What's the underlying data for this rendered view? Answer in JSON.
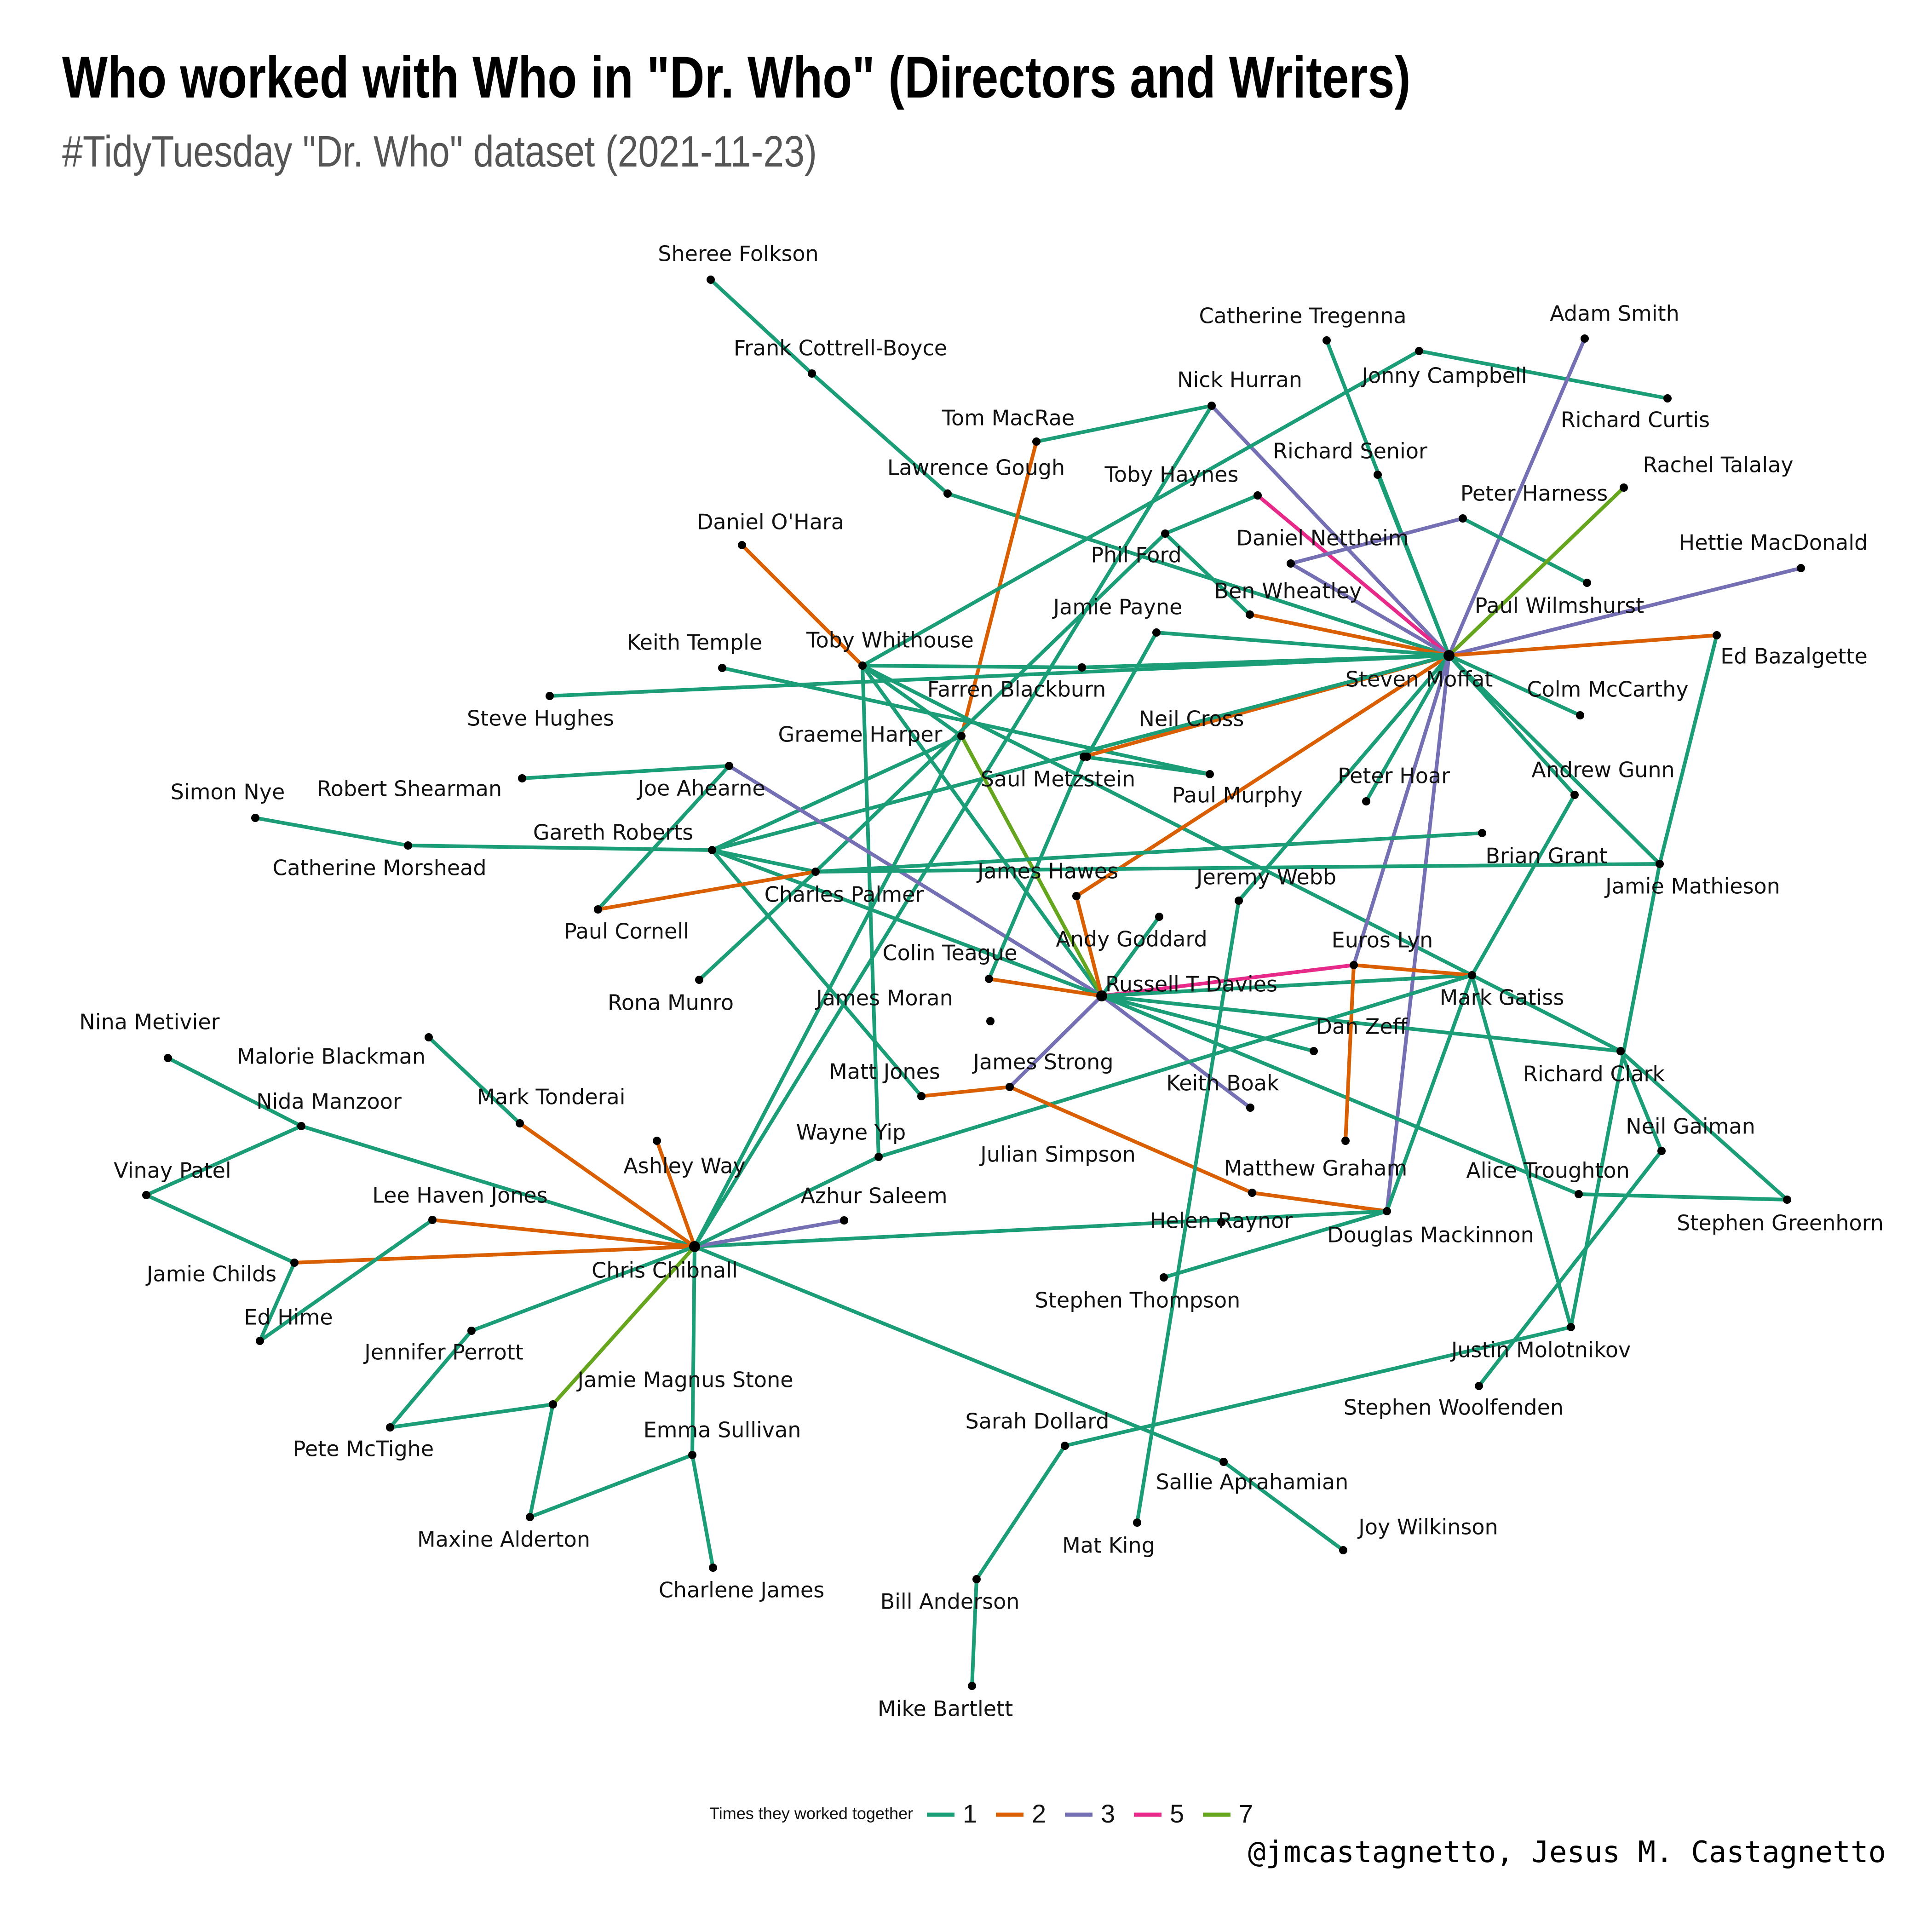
{
  "title": "Who worked with Who in \"Dr. Who\" (Directors and Writers)",
  "subtitle": "#TidyTuesday \"Dr. Who\" dataset (2021-11-23)",
  "caption": "@jmcastagnetto, Jesus M. Castagnetto",
  "legend": {
    "title": "Times they worked together",
    "items": [
      {
        "label": "1",
        "color": "#1b9e77"
      },
      {
        "label": "2",
        "color": "#d95f02"
      },
      {
        "label": "3",
        "color": "#7570b3"
      },
      {
        "label": "5",
        "color": "#e7298a"
      },
      {
        "label": "7",
        "color": "#66a61e"
      }
    ]
  },
  "nodes": [
    "Sheree Folkson",
    "Frank Cottrell-Boyce",
    "Lawrence Gough",
    "Tom MacRae",
    "Nick Hurran",
    "Catherine Tregenna",
    "Jonny Campbell",
    "Richard Curtis",
    "Adam Smith",
    "Richard Senior",
    "Toby Haynes",
    "Peter Harness",
    "Rachel Talalay",
    "Daniel O'Hara",
    "Daniel Nettheim",
    "Phil Ford",
    "Hettie MacDonald",
    "Ben Wheatley",
    "Jamie Payne",
    "Paul Wilmshurst",
    "Keith Temple",
    "Toby Whithouse",
    "Steven Moffat",
    "Ed Bazalgette",
    "Farren Blackburn",
    "Colm McCarthy",
    "Steve Hughes",
    "Neil Cross",
    "Graeme Harper",
    "Simon Nye",
    "Robert Shearman",
    "Joe Ahearne",
    "Saul Metzstein",
    "Peter Hoar",
    "Andrew Gunn",
    "Paul Murphy",
    "Catherine Morshead",
    "Gareth Roberts",
    "Brian Grant",
    "James Hawes",
    "Jeremy Webb",
    "Jamie Mathieson",
    "Charles Palmer",
    "Paul Cornell",
    "Andy Goddard",
    "Euros Lyn",
    "Colin Teague",
    "Russell T Davies",
    "Mark Gatiss",
    "Rona Munro",
    "James Moran",
    "Dan Zeff",
    "Nina Metivier",
    "Malorie Blackman",
    "Richard Clark",
    "James Strong",
    "Keith Boak",
    "Matt Jones",
    "Nida Manzoor",
    "Mark Tonderai",
    "Neil Gaiman",
    "Wayne Yip",
    "Julian Simpson",
    "Ashley Way",
    "Vinay Patel",
    "Matthew Graham",
    "Alice Troughton",
    "Lee Haven Jones",
    "Azhur Saleem",
    "Helen Raynor",
    "Stephen Greenhorn",
    "Douglas Mackinnon",
    "Jamie Childs",
    "Chris Chibnall",
    "Stephen Thompson",
    "Ed Hime",
    "Jennifer Perrott",
    "Justin Molotnikov",
    "Jamie Magnus Stone",
    "Stephen Woolfenden",
    "Pete McTighe",
    "Sarah Dollard",
    "Emma Sullivan",
    "Sallie Aprahamian",
    "Maxine Alderton",
    "Joy Wilkinson",
    "Mat King",
    "Charlene James",
    "Bill Anderson",
    "Mike Bartlett"
  ],
  "edges": [
    [
      "Sheree Folkson",
      "Frank Cottrell-Boyce",
      1
    ],
    [
      "Frank Cottrell-Boyce",
      "Lawrence Gough",
      1
    ],
    [
      "Lawrence Gough",
      "Steven Moffat",
      1
    ],
    [
      "Tom MacRae",
      "Nick Hurran",
      1
    ],
    [
      "Tom MacRae",
      "Graeme Harper",
      2
    ],
    [
      "Nick Hurran",
      "Steven Moffat",
      3
    ],
    [
      "Nick Hurran",
      "Chris Chibnall",
      1
    ],
    [
      "Catherine Tregenna",
      "Steven Moffat",
      1
    ],
    [
      "Jonny Campbell",
      "Richard Curtis",
      1
    ],
    [
      "Jonny Campbell",
      "Toby Whithouse",
      1
    ],
    [
      "Adam Smith",
      "Steven Moffat",
      3
    ],
    [
      "Richard Senior",
      "Steven Moffat",
      1
    ],
    [
      "Toby Haynes",
      "Steven Moffat",
      5
    ],
    [
      "Peter Harness",
      "Daniel Nettheim",
      3
    ],
    [
      "Peter Harness",
      "Paul Wilmshurst",
      1
    ],
    [
      "Rachel Talalay",
      "Steven Moffat",
      7
    ],
    [
      "Daniel O'Hara",
      "Toby Whithouse",
      2
    ],
    [
      "Daniel Nettheim",
      "Steven Moffat",
      3
    ],
    [
      "Phil Ford",
      "Toby Haynes",
      1
    ],
    [
      "Phil Ford",
      "Ben Wheatley",
      1
    ],
    [
      "Phil Ford",
      "Charles Palmer",
      1
    ],
    [
      "Hettie MacDonald",
      "Steven Moffat",
      3
    ],
    [
      "Ben Wheatley",
      "Steven Moffat",
      2
    ],
    [
      "Jamie Payne",
      "Steven Moffat",
      1
    ],
    [
      "Jamie Payne",
      "Neil Cross",
      1
    ],
    [
      "Keith Temple",
      "Paul Murphy",
      1
    ],
    [
      "Toby Whithouse",
      "Graeme Harper",
      1
    ],
    [
      "Toby Whithouse",
      "Farren Blackburn",
      1
    ],
    [
      "Toby Whithouse",
      "Wayne Yip",
      1
    ],
    [
      "Toby Whithouse",
      "Russell T Davies",
      1
    ],
    [
      "Toby Whithouse",
      "Mark Gatiss",
      1
    ],
    [
      "Steven Moffat",
      "Ed Bazalgette",
      2
    ],
    [
      "Steven Moffat",
      "Farren Blackburn",
      1
    ],
    [
      "Steven Moffat",
      "Colm McCarthy",
      1
    ],
    [
      "Steven Moffat",
      "Saul Metzstein",
      2
    ],
    [
      "Steven Moffat",
      "Andrew Gunn",
      1
    ],
    [
      "Steven Moffat",
      "Peter Hoar",
      1
    ],
    [
      "Steven Moffat",
      "James Hawes",
      2
    ],
    [
      "Steven Moffat",
      "Jeremy Webb",
      1
    ],
    [
      "Steven Moffat",
      "Euros Lyn",
      3
    ],
    [
      "Steven Moffat",
      "Douglas Mackinnon",
      3
    ],
    [
      "Steven Moffat",
      "Gareth Roberts",
      1
    ],
    [
      "Steven Moffat",
      "Jamie Mathieson",
      1
    ],
    [
      "Steven Moffat",
      "Steve Hughes",
      1
    ],
    [
      "Ed Bazalgette",
      "Jamie Mathieson",
      1
    ],
    [
      "Graeme Harper",
      "Gareth Roberts",
      1
    ],
    [
      "Graeme Harper",
      "Chris Chibnall",
      1
    ],
    [
      "Graeme Harper",
      "Russell T Davies",
      7
    ],
    [
      "Robert Shearman",
      "Joe Ahearne",
      1
    ],
    [
      "Joe Ahearne",
      "Russell T Davies",
      3
    ],
    [
      "Joe Ahearne",
      "Paul Cornell",
      1
    ],
    [
      "Simon Nye",
      "Catherine Morshead",
      1
    ],
    [
      "Catherine Morshead",
      "Gareth Roberts",
      1
    ],
    [
      "Saul Metzstein",
      "Paul Murphy",
      1
    ],
    [
      "Saul Metzstein",
      "Colin Teague",
      1
    ],
    [
      "Gareth Roberts",
      "Charles Palmer",
      1
    ],
    [
      "Gareth Roberts",
      "Russell T Davies",
      1
    ],
    [
      "Gareth Roberts",
      "Matt Jones",
      1
    ],
    [
      "Paul Cornell",
      "Charles Palmer",
      2
    ],
    [
      "Charles Palmer",
      "Jamie Mathieson",
      1
    ],
    [
      "Charles Palmer",
      "Rona Munro",
      1
    ],
    [
      "Charles Palmer",
      "Brian Grant",
      1
    ],
    [
      "James Hawes",
      "Russell T Davies",
      2
    ],
    [
      "Andrew Gunn",
      "Mark Gatiss",
      1
    ],
    [
      "Jamie Mathieson",
      "Justin Molotnikov",
      1
    ],
    [
      "Andy Goddard",
      "Russell T Davies",
      1
    ],
    [
      "Russell T Davies",
      "Euros Lyn",
      5
    ],
    [
      "Russell T Davies",
      "Colin Teague",
      2
    ],
    [
      "Russell T Davies",
      "Dan Zeff",
      1
    ],
    [
      "Russell T Davies",
      "Keith Boak",
      3
    ],
    [
      "Russell T Davies",
      "James Strong",
      3
    ],
    [
      "Russell T Davies",
      "Richard Clark",
      1
    ],
    [
      "Russell T Davies",
      "Alice Troughton",
      1
    ],
    [
      "Russell T Davies",
      "Mark Gatiss",
      1
    ],
    [
      "Euros Lyn",
      "Mark Gatiss",
      2
    ],
    [
      "Euros Lyn",
      "Julian Simpson",
      2
    ],
    [
      "Mark Gatiss",
      "Richard Clark",
      1
    ],
    [
      "Mark Gatiss",
      "Douglas Mackinnon",
      1
    ],
    [
      "Mark Gatiss",
      "Justin Molotnikov",
      1
    ],
    [
      "Mark Gatiss",
      "Wayne Yip",
      1
    ],
    [
      "Richard Clark",
      "Neil Gaiman",
      1
    ],
    [
      "Richard Clark",
      "Stephen Greenhorn",
      1
    ],
    [
      "Alice Troughton",
      "Stephen Greenhorn",
      1
    ],
    [
      "Neil Gaiman",
      "Stephen Woolfenden",
      1
    ],
    [
      "James Strong",
      "Matt Jones",
      2
    ],
    [
      "James Strong",
      "Matthew Graham",
      2
    ],
    [
      "Matthew Graham",
      "Douglas Mackinnon",
      2
    ],
    [
      "Douglas Mackinnon",
      "Stephen Thompson",
      1
    ],
    [
      "Douglas Mackinnon",
      "Chris Chibnall",
      1
    ],
    [
      "Jeremy Webb",
      "Mat King",
      1
    ],
    [
      "Nina Metivier",
      "Nida Manzoor",
      1
    ],
    [
      "Malorie Blackman",
      "Mark Tonderai",
      1
    ],
    [
      "Nida Manzoor",
      "Vinay Patel",
      1
    ],
    [
      "Nida Manzoor",
      "Chris Chibnall",
      1
    ],
    [
      "Vinay Patel",
      "Jamie Childs",
      1
    ],
    [
      "Jamie Childs",
      "Ed Hime",
      1
    ],
    [
      "Jamie Childs",
      "Chris Chibnall",
      2
    ],
    [
      "Lee Haven Jones",
      "Ed Hime",
      1
    ],
    [
      "Lee Haven Jones",
      "Chris Chibnall",
      2
    ],
    [
      "Mark Tonderai",
      "Chris Chibnall",
      2
    ],
    [
      "Ashley Way",
      "Chris Chibnall",
      2
    ],
    [
      "Azhur Saleem",
      "Chris Chibnall",
      3
    ],
    [
      "Wayne Yip",
      "Chris Chibnall",
      1
    ],
    [
      "Chris Chibnall",
      "Jennifer Perrott",
      1
    ],
    [
      "Chris Chibnall",
      "Jamie Magnus Stone",
      7
    ],
    [
      "Chris Chibnall",
      "Emma Sullivan",
      1
    ],
    [
      "Chris Chibnall",
      "Sallie Aprahamian",
      1
    ],
    [
      "Jennifer Perrott",
      "Pete McTighe",
      1
    ],
    [
      "Pete McTighe",
      "Jamie Magnus Stone",
      1
    ],
    [
      "Jamie Magnus Stone",
      "Maxine Alderton",
      1
    ],
    [
      "Maxine Alderton",
      "Emma Sullivan",
      1
    ],
    [
      "Emma Sullivan",
      "Charlene James",
      1
    ],
    [
      "Sallie Aprahamian",
      "Joy Wilkinson",
      1
    ],
    [
      "Justin Molotnikov",
      "Sarah Dollard",
      1
    ],
    [
      "Sarah Dollard",
      "Bill Anderson",
      1
    ],
    [
      "Bill Anderson",
      "Mike Bartlett",
      1
    ]
  ]
}
